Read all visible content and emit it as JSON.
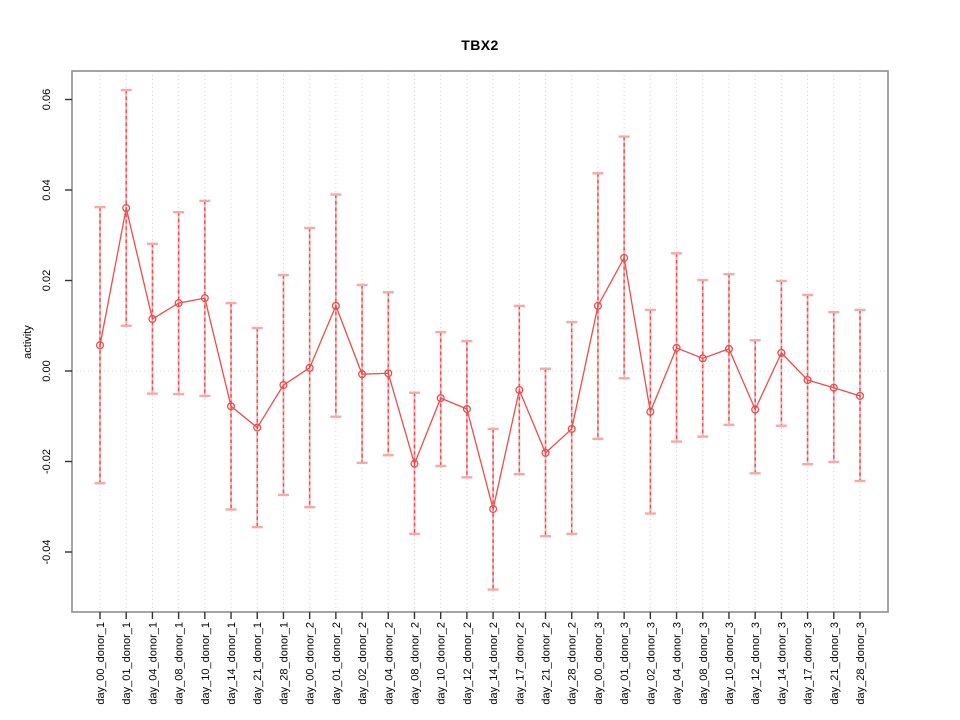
{
  "chart_data": {
    "type": "line",
    "subtype": "error-bar-series",
    "title": "TBX2",
    "xlabel": "",
    "ylabel": "activity",
    "ylim": [
      -0.053,
      0.066
    ],
    "grid": "vertical dotted gridline per category; horizontal dotted line at 0",
    "legend_position": "none",
    "yticks": {
      "labels": [
        "0.06",
        "0.04",
        "0.02",
        "0.00",
        "-0.02",
        "-0.04"
      ],
      "values": [
        0.06,
        0.04,
        0.02,
        0.0,
        -0.02,
        -0.04
      ]
    },
    "categories": [
      "day_00_donor_1",
      "day_01_donor_1",
      "day_04_donor_1",
      "day_08_donor_1",
      "day_10_donor_1",
      "day_14_donor_1",
      "day_21_donor_1",
      "day_28_donor_1",
      "day_00_donor_2",
      "day_01_donor_2",
      "day_02_donor_2",
      "day_04_donor_2",
      "day_08_donor_2",
      "day_10_donor_2",
      "day_12_donor_2",
      "day_14_donor_2",
      "day_17_donor_2",
      "day_21_donor_2",
      "day_28_donor_2",
      "day_00_donor_3",
      "day_01_donor_3",
      "day_02_donor_3",
      "day_04_donor_3",
      "day_08_donor_3",
      "day_10_donor_3",
      "day_12_donor_3",
      "day_14_donor_3",
      "day_17_donor_3",
      "day_21_donor_3",
      "day_28_donor_3"
    ],
    "series": [
      {
        "name": "activity",
        "marker": "open-circle",
        "values": [
          0.0057,
          0.036,
          0.0115,
          0.015,
          0.0161,
          -0.0078,
          -0.0125,
          -0.0031,
          0.0007,
          0.0144,
          -0.0007,
          -0.0005,
          -0.0205,
          -0.006,
          -0.0084,
          -0.0305,
          -0.0042,
          -0.0181,
          -0.0128,
          0.0144,
          0.025,
          -0.009,
          0.0051,
          0.0028,
          0.0049,
          -0.0085,
          0.004,
          -0.002,
          -0.0037,
          -0.0055
        ],
        "upper": [
          0.0362,
          0.0621,
          0.0281,
          0.0351,
          0.0376,
          0.015,
          0.0095,
          0.0212,
          0.0316,
          0.039,
          0.019,
          0.0174,
          -0.0048,
          0.0086,
          0.0066,
          -0.0128,
          0.0144,
          0.0005,
          0.0108,
          0.0437,
          0.0518,
          0.0135,
          0.026,
          0.0201,
          0.0214,
          0.0068,
          0.0199,
          0.0168,
          0.013,
          0.0135
        ],
        "lower": [
          -0.0248,
          0.01,
          -0.005,
          -0.0051,
          -0.0055,
          -0.0306,
          -0.0345,
          -0.0274,
          -0.0301,
          -0.0101,
          -0.0203,
          -0.0186,
          -0.036,
          -0.021,
          -0.0235,
          -0.0483,
          -0.0228,
          -0.0365,
          -0.036,
          -0.015,
          -0.0016,
          -0.0315,
          -0.0156,
          -0.0145,
          -0.0119,
          -0.0226,
          -0.0121,
          -0.0206,
          -0.0201,
          -0.0243
        ]
      }
    ],
    "colors": {
      "line": "#ee4c4c",
      "marker": "#ee4c4c",
      "error_cap": "#f8a8a8",
      "error_bar_base": "#f8b0b0",
      "grid": "#d4d4d4",
      "border": "#9a9a9a",
      "tick": "#333333",
      "text": "#000000",
      "background": "#ffffff"
    }
  }
}
